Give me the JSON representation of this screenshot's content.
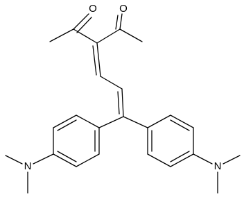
{
  "atoms": [
    {
      "label": "O"
    },
    {
      "label": "O"
    },
    {
      "label": "N"
    },
    {
      "label": "N"
    }
  ]
}
